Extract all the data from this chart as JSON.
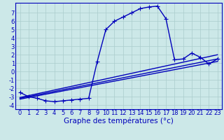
{
  "xlabel": "Graphe des températures (°c)",
  "background_color": "#cce8e8",
  "grid_color": "#aacccc",
  "line_color": "#0000bb",
  "xlim": [
    -0.5,
    23.5
  ],
  "ylim": [
    -4.5,
    8.2
  ],
  "series": [
    {
      "x": [
        0,
        1,
        2,
        3,
        4,
        5,
        6,
        7,
        8,
        9,
        10,
        11,
        12,
        13,
        14,
        15,
        16,
        17,
        18,
        19,
        20,
        21,
        22,
        23
      ],
      "y": [
        -2.5,
        -3.0,
        -3.2,
        -3.5,
        -3.6,
        -3.5,
        -3.4,
        -3.3,
        -3.2,
        1.2,
        5.0,
        6.0,
        6.5,
        7.0,
        7.5,
        7.7,
        7.8,
        6.3,
        1.4,
        1.5,
        2.2,
        1.7,
        0.9,
        1.5
      ],
      "marker": true
    },
    {
      "x": [
        0,
        23
      ],
      "y": [
        -3.1,
        2.0
      ],
      "marker": false
    },
    {
      "x": [
        0,
        23
      ],
      "y": [
        -3.2,
        1.5
      ],
      "marker": false
    },
    {
      "x": [
        0,
        23
      ],
      "y": [
        -3.3,
        1.2
      ],
      "marker": false
    }
  ],
  "marker_symbol": "+",
  "marker_size": 4,
  "linewidth": 1.0,
  "tick_fontsize": 6,
  "xlabel_fontsize": 7.5
}
